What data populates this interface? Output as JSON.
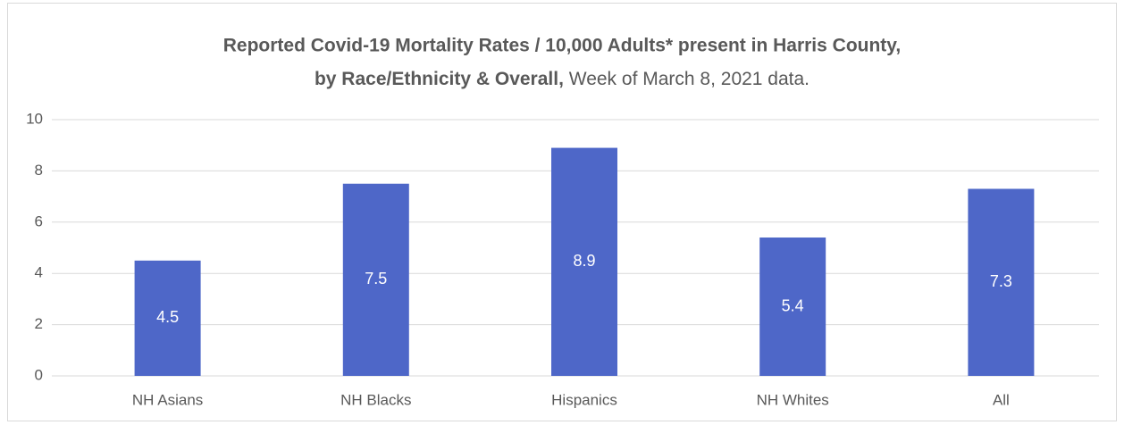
{
  "chart_data": {
    "type": "bar",
    "title": [
      "Reported Covid-19 Mortality Rates / 10,000 Adults* present in Harris County,",
      "by Race/Ethnicity & Overall,",
      "Week of March 8, 2021 data."
    ],
    "categories": [
      "NH Asians",
      "NH Blacks",
      "Hispanics",
      "NH Whites",
      "All"
    ],
    "values": [
      4.5,
      7.5,
      8.9,
      5.4,
      7.3
    ],
    "color": "#4e67c8",
    "ylim": [
      0,
      10
    ],
    "yticks": [
      0,
      2,
      4,
      6,
      8,
      10
    ],
    "grid": true
  }
}
